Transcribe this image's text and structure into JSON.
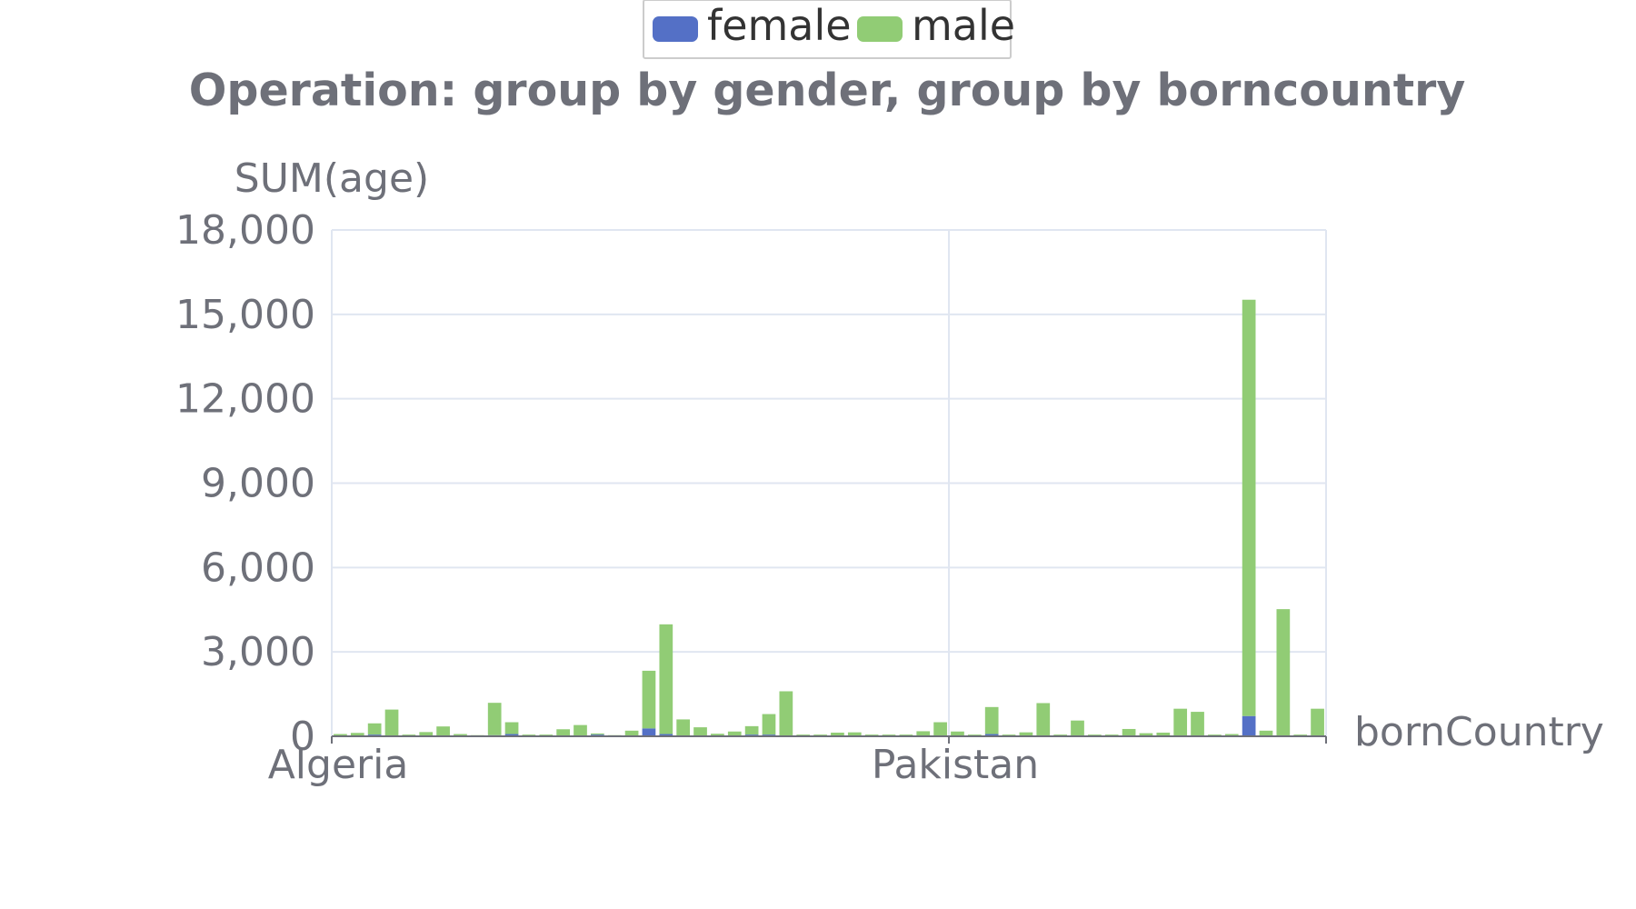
{
  "colors": {
    "female": "#5470c6",
    "male": "#91cc75"
  },
  "chart_data": {
    "type": "bar",
    "stacked": true,
    "title": "Operation: group by gender, group by borncountry",
    "xlabel": "bornCountry",
    "ylabel": "SUM(age)",
    "ylim": [
      0,
      18000
    ],
    "yticks": [
      "0",
      "3,000",
      "6,000",
      "9,000",
      "12,000",
      "15,000",
      "18,000"
    ],
    "ytick_values": [
      0,
      3000,
      6000,
      9000,
      12000,
      15000,
      18000
    ],
    "visible_categories": [
      "Algeria",
      "Pakistan"
    ],
    "visible_category_indices": [
      0,
      36
    ],
    "category_count": 58,
    "legend": {
      "position": "top-center",
      "entries": [
        "female",
        "male"
      ]
    },
    "grid": true,
    "series": [
      {
        "name": "female",
        "values": [
          0,
          0,
          60,
          0,
          0,
          0,
          0,
          0,
          0,
          40,
          80,
          0,
          0,
          0,
          0,
          60,
          0,
          0,
          280,
          80,
          0,
          0,
          0,
          0,
          60,
          60,
          0,
          0,
          0,
          0,
          0,
          0,
          0,
          0,
          0,
          0,
          0,
          0,
          80,
          0,
          0,
          0,
          0,
          0,
          0,
          0,
          0,
          0,
          0,
          0,
          0,
          0,
          0,
          720,
          0,
          0,
          0,
          0
        ]
      },
      {
        "name": "male",
        "values": [
          80,
          120,
          400,
          950,
          60,
          150,
          350,
          80,
          40,
          1150,
          420,
          60,
          60,
          250,
          400,
          40,
          40,
          200,
          2050,
          3900,
          600,
          320,
          90,
          170,
          300,
          730,
          1600,
          60,
          60,
          130,
          140,
          60,
          60,
          60,
          180,
          500,
          170,
          60,
          960,
          60,
          140,
          1180,
          60,
          560,
          60,
          60,
          260,
          110,
          130,
          980,
          870,
          60,
          80,
          14800,
          200,
          4520,
          60,
          980
        ]
      }
    ]
  }
}
